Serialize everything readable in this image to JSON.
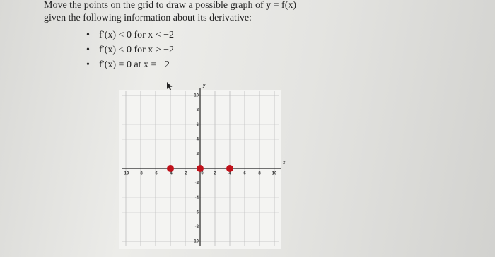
{
  "prompt": {
    "line1": "Move the points on the grid to draw a possible graph of y = f(x)",
    "line2": "given the following information about its derivative:",
    "bullets": [
      "f′(x) < 0 for x < −2",
      "f′(x) < 0 for x > −2",
      "f′(x) = 0 at x = −2"
    ]
  },
  "graph": {
    "x_label": "x",
    "y_label": "y",
    "xlim": [
      -10,
      10
    ],
    "ylim": [
      -10,
      10
    ],
    "xticks": [
      -10,
      -8,
      -6,
      -4,
      -2,
      0,
      2,
      4,
      6,
      8,
      10
    ],
    "yticks": [
      -10,
      -8,
      -6,
      -4,
      -2,
      2,
      4,
      6,
      8,
      10
    ],
    "point_color": "#c0111a",
    "points": {
      "x": [
        -4,
        0,
        4
      ],
      "y": [
        0,
        0,
        0
      ]
    }
  }
}
